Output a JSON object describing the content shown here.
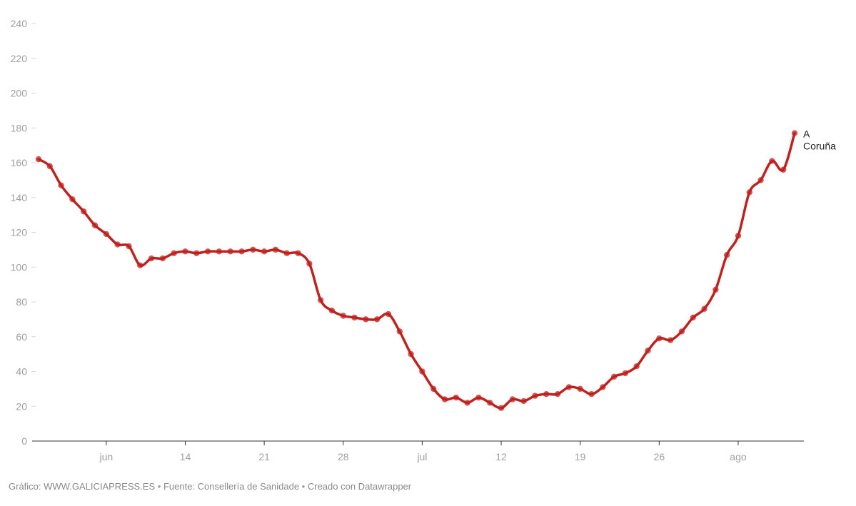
{
  "chart_data": {
    "type": "line",
    "title": "",
    "xlabel": "",
    "ylabel": "",
    "ylim": [
      0,
      240
    ],
    "yticks": [
      0,
      20,
      40,
      60,
      80,
      100,
      120,
      140,
      160,
      180,
      200,
      220,
      240
    ],
    "xticks": [
      {
        "day": 6,
        "label": "jun"
      },
      {
        "day": 13,
        "label": "14"
      },
      {
        "day": 20,
        "label": "21"
      },
      {
        "day": 27,
        "label": "28"
      },
      {
        "day": 34,
        "label": "jul"
      },
      {
        "day": 41,
        "label": "12"
      },
      {
        "day": 48,
        "label": "19"
      },
      {
        "day": 55,
        "label": "26"
      },
      {
        "day": 62,
        "label": "ago"
      }
    ],
    "grid": "horizontal-dashes",
    "color": "#c0201e",
    "series": [
      {
        "name": "A Coruña",
        "label_lines": [
          "A",
          "Coruña"
        ],
        "values": [
          162,
          158,
          147,
          139,
          132,
          124,
          119,
          113,
          112,
          101,
          105,
          105,
          108,
          109,
          108,
          109,
          109,
          109,
          109,
          110,
          109,
          110,
          108,
          108,
          102,
          81,
          75,
          72,
          71,
          70,
          70,
          73,
          63,
          50,
          40,
          30,
          24,
          25,
          22,
          25,
          22,
          19,
          24,
          23,
          26,
          27,
          27,
          31,
          30,
          27,
          31,
          37,
          39,
          43,
          52,
          59,
          58,
          63,
          71,
          76,
          87,
          107,
          118,
          143,
          150,
          161,
          156,
          177
        ]
      }
    ]
  },
  "footer": {
    "credit": "Gráfico: WWW.GALICIAPRESS.ES",
    "source": "Fuente: Consellería de Sanidade",
    "tool": "Creado con Datawrapper",
    "separator": "•"
  }
}
